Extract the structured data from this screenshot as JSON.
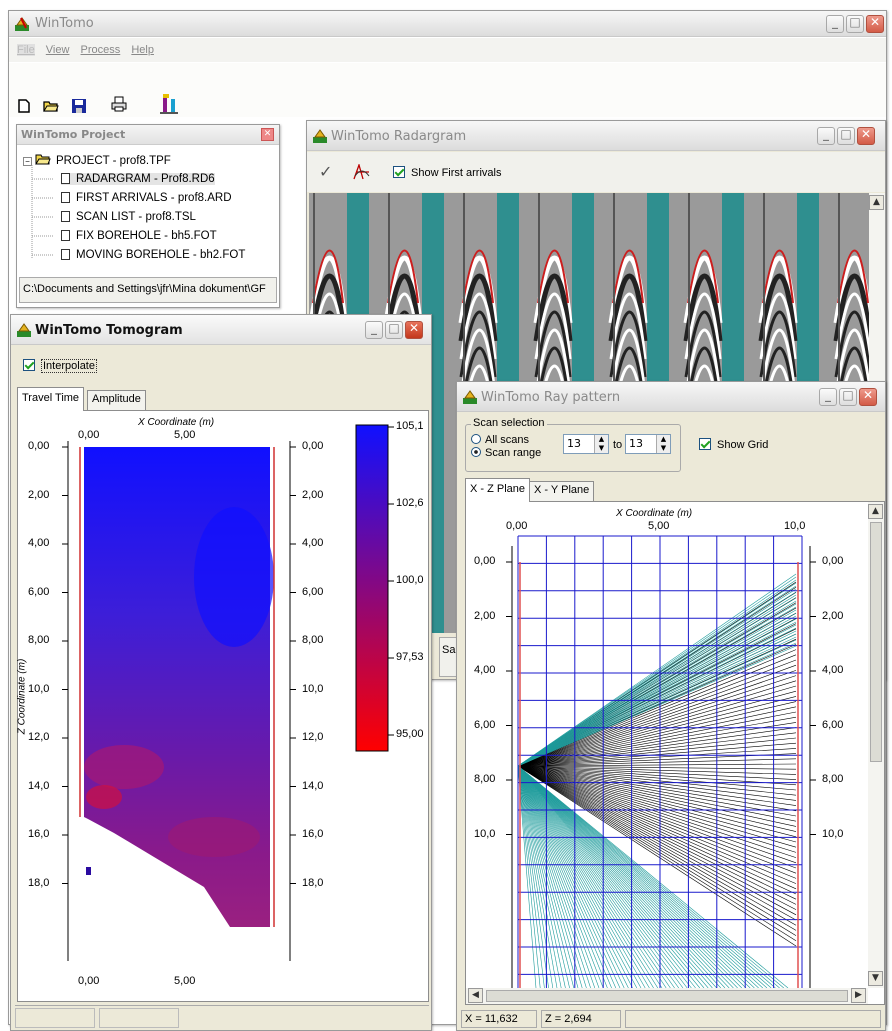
{
  "main": {
    "title": "WinTomo",
    "menu": [
      "File",
      "View",
      "Process",
      "Help"
    ],
    "toolbar_icons": [
      "new-file-icon",
      "open-folder-icon",
      "save-icon",
      "print-icon",
      "borehole-tool-icon"
    ]
  },
  "project": {
    "title": "WinTomo Project",
    "root": "PROJECT - prof8.TPF",
    "items": [
      "RADARGRAM - Prof8.RD6",
      "FIRST ARRIVALS - prof8.ARD",
      "SCAN LIST - prof8.TSL",
      "FIX BOREHOLE - bh5.FOT",
      "MOVING BOREHOLE - bh2.FOT"
    ],
    "path": "C:\\Documents and Settings\\jfr\\Mina dokument\\GF"
  },
  "radargram": {
    "title": "WinTomo Radargram",
    "show_first_arrivals_label": "Show First arrivals",
    "show_first_arrivals": true,
    "status_fragment": "Sar",
    "colors": {
      "teal": "#2f8f8f",
      "trace": "#ffffff",
      "pick": "#cc1f1f"
    }
  },
  "tomogram": {
    "title": "WinTomo Tomogram",
    "interpolate_label": "Interpolate",
    "interpolate": true,
    "tabs": [
      "Travel Time",
      "Amplitude"
    ],
    "x_axis_title": "X Coordinate (m)",
    "y_axis_title": "Z Coordinate (m)",
    "x_ticks": [
      "0,00",
      "5,00"
    ],
    "z_ticks": [
      "0,00",
      "2,00",
      "4,00",
      "6,00",
      "8,00",
      "10,0",
      "12,0",
      "14,0",
      "16,0",
      "18,0"
    ],
    "colorbar_ticks": [
      "105,1",
      "102,6",
      "100,0",
      "97,53",
      "95,00"
    ],
    "colorbar_colors": {
      "high": "#1010ff",
      "low": "#ff0000"
    }
  },
  "raypattern": {
    "title": "WinTomo Ray pattern",
    "scan_selection_label": "Scan selection",
    "all_scans_label": "All scans",
    "scan_range_label": "Scan range",
    "scan_range_selected": true,
    "from_value": "13",
    "to_label": "to",
    "to_value": "13",
    "show_grid_label": "Show Grid",
    "show_grid": true,
    "tabs": [
      "X - Z Plane",
      "X - Y Plane"
    ],
    "x_axis_title": "X Coordinate (m)",
    "x_ticks": [
      "0,00",
      "5,00",
      "10,0"
    ],
    "z_ticks": [
      "0,00",
      "2,00",
      "4,00",
      "6,00",
      "8,00",
      "10,0"
    ],
    "status_x": "X = 11,632",
    "status_z": "Z = 2,694",
    "colors": {
      "grid": "#1a1acc",
      "ray_black": "#000000",
      "ray_teal": "#1f9c9c",
      "borehole": "#e05050"
    }
  }
}
